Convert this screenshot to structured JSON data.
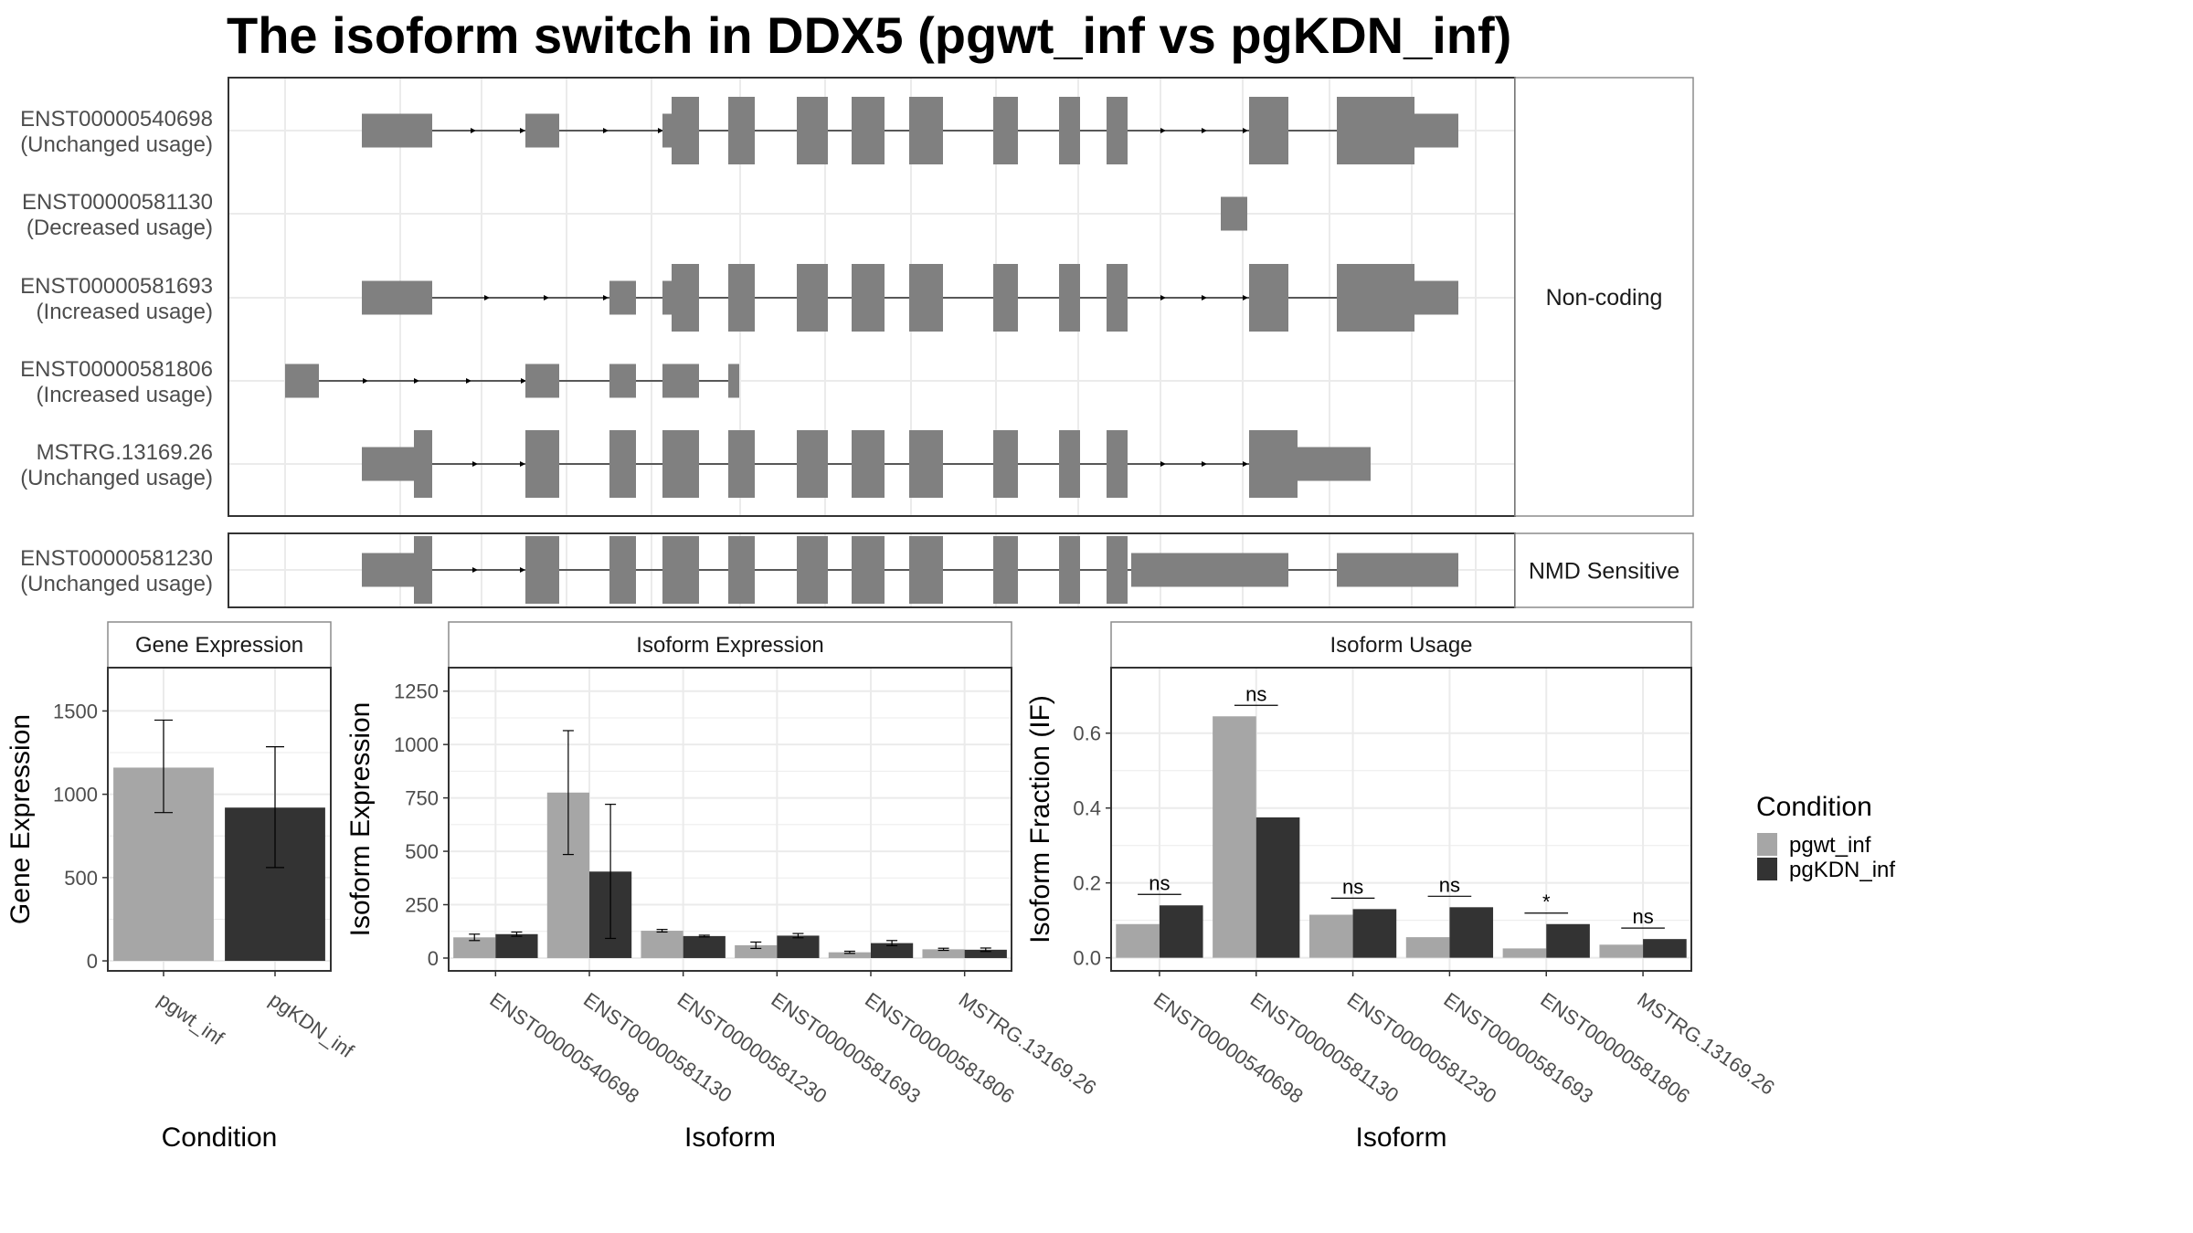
{
  "title": "The isoform switch in DDX5 (pgwt_inf vs pgKDN_inf)",
  "colors": {
    "exon": "#808080",
    "pgwt_inf": "#a6a6a6",
    "pgKDN_inf": "#333333",
    "grid": "#ebebeb",
    "panel_border": "#333333",
    "strip_bg": "#ffffff"
  },
  "structure": {
    "groups": [
      {
        "label": "Non-coding",
        "isoform_ids": [
          "ENST00000540698",
          "ENST00000581130",
          "ENST00000581693",
          "ENST00000581806",
          "MSTRG.13169.26"
        ]
      },
      {
        "label": "NMD Sensitive",
        "isoform_ids": [
          "ENST00000581230"
        ]
      }
    ],
    "isoforms": [
      {
        "id": "ENST00000540698",
        "usage": "(Unchanged usage)"
      },
      {
        "id": "ENST00000581130",
        "usage": "(Decreased usage)"
      },
      {
        "id": "ENST00000581693",
        "usage": "(Increased usage)"
      },
      {
        "id": "ENST00000581806",
        "usage": "(Increased usage)"
      },
      {
        "id": "MSTRG.13169.26",
        "usage": "(Unchanged usage)"
      },
      {
        "id": "ENST00000581230",
        "usage": "(Unchanged usage)"
      }
    ]
  },
  "chart_data": [
    {
      "type": "bar",
      "title": "Gene Expression",
      "xlabel": "Condition",
      "ylabel": "Gene Expression",
      "categories": [
        "pgwt_inf",
        "pgKDN_inf"
      ],
      "values": [
        1160,
        920
      ],
      "error_low": [
        890,
        560
      ],
      "error_high": [
        1445,
        1285
      ],
      "ylim": [
        -60,
        1760
      ],
      "yticks": [
        0,
        500,
        1000,
        1500
      ],
      "grid": true
    },
    {
      "type": "bar",
      "title": "Isoform Expression",
      "xlabel": "Isoform",
      "ylabel": "Isoform Expression",
      "categories": [
        "ENST00000540698",
        "ENST00000581130",
        "ENST00000581230",
        "ENST00000581693",
        "ENST00000581806",
        "MSTRG.13169.26"
      ],
      "series": [
        {
          "name": "pgwt_inf",
          "values": [
            97,
            775,
            128,
            60,
            27,
            41
          ],
          "error_low": [
            82,
            485,
            122,
            45,
            22,
            36
          ],
          "error_high": [
            112,
            1065,
            134,
            75,
            32,
            46
          ]
        },
        {
          "name": "pgKDN_inf",
          "values": [
            112,
            405,
            103,
            105,
            70,
            39
          ],
          "error_low": [
            102,
            92,
            99,
            95,
            58,
            31
          ],
          "error_high": [
            122,
            720,
            107,
            115,
            82,
            47
          ]
        }
      ],
      "ylim": [
        -60,
        1360
      ],
      "yticks": [
        0,
        250,
        500,
        750,
        1000,
        1250
      ],
      "grid": true
    },
    {
      "type": "bar",
      "title": "Isoform Usage",
      "xlabel": "Isoform",
      "ylabel": "Isoform Fraction (IF)",
      "categories": [
        "ENST00000540698",
        "ENST00000581130",
        "ENST00000581230",
        "ENST00000581693",
        "ENST00000581806",
        "MSTRG.13169.26"
      ],
      "series": [
        {
          "name": "pgwt_inf",
          "values": [
            0.09,
            0.645,
            0.115,
            0.055,
            0.025,
            0.035
          ]
        },
        {
          "name": "pgKDN_inf",
          "values": [
            0.14,
            0.375,
            0.13,
            0.135,
            0.09,
            0.05
          ]
        }
      ],
      "significance": [
        "ns",
        "ns",
        "ns",
        "ns",
        "*",
        "ns"
      ],
      "ylim": [
        -0.035,
        0.775
      ],
      "yticks": [
        0.0,
        0.2,
        0.4,
        0.6
      ],
      "grid": true
    }
  ],
  "legend": {
    "title": "Condition",
    "items": [
      {
        "label": "pgwt_inf",
        "color": "#a6a6a6"
      },
      {
        "label": "pgKDN_inf",
        "color": "#333333"
      }
    ],
    "position": "right"
  }
}
